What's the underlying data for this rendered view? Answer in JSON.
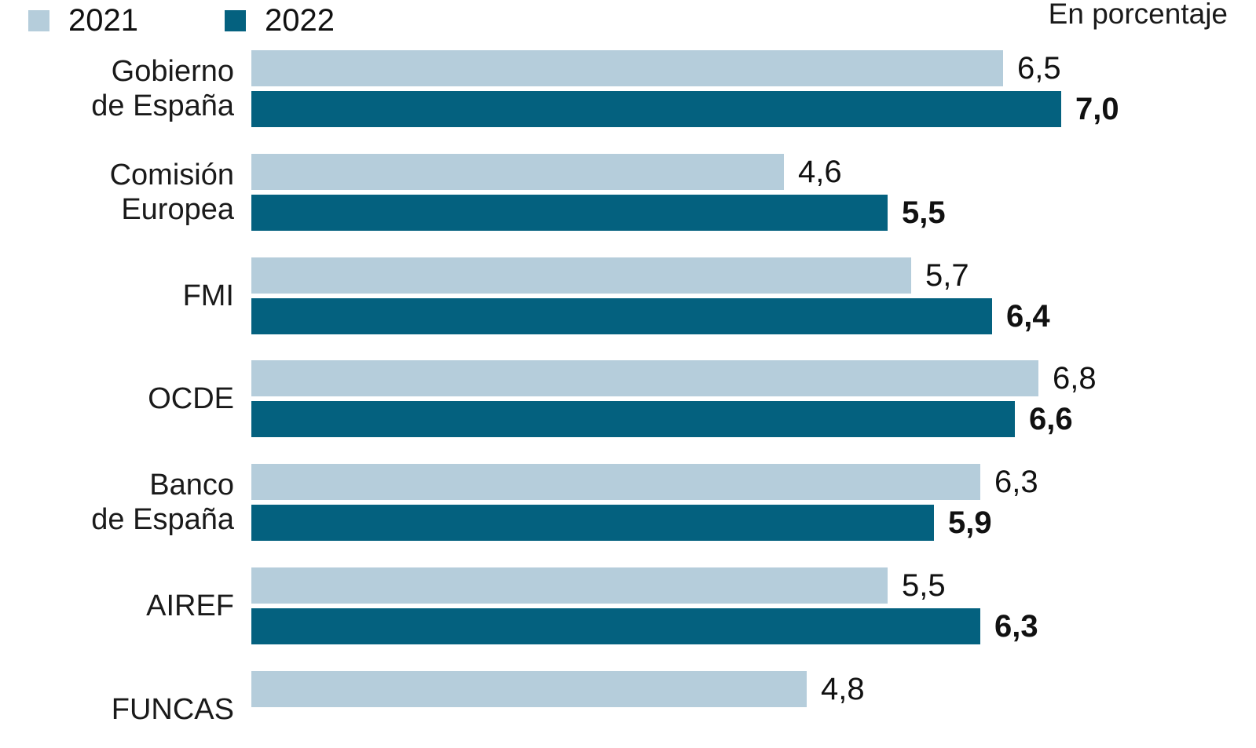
{
  "legend": {
    "items": [
      {
        "label": "2021",
        "color": "#b5cddb"
      },
      {
        "label": "2022",
        "color": "#04617f"
      }
    ]
  },
  "unit_label": "En porcentaje",
  "colors": {
    "series_2021": "#b5cddb",
    "series_2022": "#04617f",
    "text": "#1a1a1a",
    "background": "#ffffff"
  },
  "chart_data": {
    "type": "bar",
    "orientation": "horizontal",
    "title": "",
    "unit_label": "En porcentaje",
    "legend_position": "top-left",
    "grid": false,
    "xlim": [
      0,
      7.5
    ],
    "categories": [
      "Gobierno de España",
      "Comisión Europea",
      "FMI",
      "OCDE",
      "Banco de España",
      "AIREF",
      "FUNCAS"
    ],
    "category_display": [
      "Gobierno\nde España",
      "Comisión\nEuropea",
      "FMI",
      "OCDE",
      "Banco\nde España",
      "AIREF",
      "FUNCAS"
    ],
    "series": [
      {
        "name": "2021",
        "color": "#b5cddb",
        "bold_labels": false,
        "values": [
          6.5,
          4.6,
          5.7,
          6.8,
          6.3,
          5.5,
          4.8
        ],
        "labels": [
          "6,5",
          "4,6",
          "5,7",
          "6,8",
          "6,3",
          "5,5",
          "4,8"
        ]
      },
      {
        "name": "2022",
        "color": "#04617f",
        "bold_labels": true,
        "values": [
          7.0,
          5.5,
          6.4,
          6.6,
          5.9,
          6.3,
          null
        ],
        "labels": [
          "7,0",
          "5,5",
          "6,4",
          "6,6",
          "5,9",
          "6,3",
          null
        ]
      }
    ]
  }
}
